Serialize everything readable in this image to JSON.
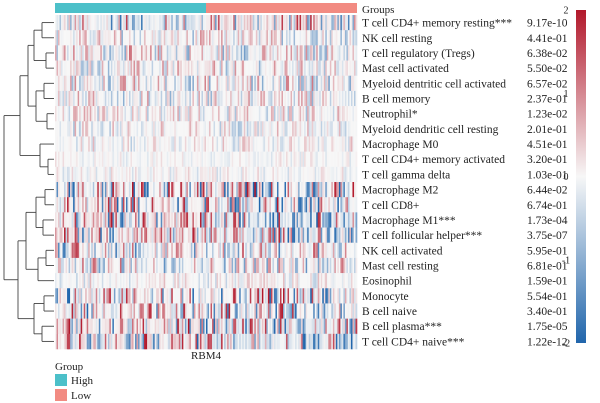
{
  "chart_data": {
    "type": "heatmap",
    "annotation_title": "Groups",
    "column_label": "RBM4",
    "groups": [
      {
        "name": "High",
        "color": "#4cc0c9",
        "fraction": 0.5
      },
      {
        "name": "Low",
        "color": "#f28b82",
        "fraction": 0.5
      }
    ],
    "group_legend_title": "Group",
    "rows": [
      {
        "label": "T cell CD4+ memory resting***",
        "pvalue": "9.17e-10"
      },
      {
        "label": "NK cell resting",
        "pvalue": "4.41e-01"
      },
      {
        "label": "T cell regulatory (Tregs)",
        "pvalue": "6.38e-02"
      },
      {
        "label": "Mast cell activated",
        "pvalue": "5.50e-02"
      },
      {
        "label": "Myeloid dentritic cell activated",
        "pvalue": "6.57e-02"
      },
      {
        "label": "B cell memory",
        "pvalue": "2.37e-01"
      },
      {
        "label": "Neutrophil*",
        "pvalue": "1.23e-02"
      },
      {
        "label": "Myeloid dendritic cell resting",
        "pvalue": "2.01e-01"
      },
      {
        "label": "Macrophage M0",
        "pvalue": "4.51e-01"
      },
      {
        "label": "T cell CD4+ memory activated",
        "pvalue": "3.20e-01"
      },
      {
        "label": "T cell gamma delta",
        "pvalue": "1.03e-01"
      },
      {
        "label": "Macrophage M2",
        "pvalue": "6.44e-02"
      },
      {
        "label": "T cell CD8+",
        "pvalue": "6.74e-01"
      },
      {
        "label": "Macrophage M1***",
        "pvalue": "1.73e-04"
      },
      {
        "label": "T cell follicular helper***",
        "pvalue": "3.75e-07"
      },
      {
        "label": "NK cell activated",
        "pvalue": "5.95e-01"
      },
      {
        "label": "Mast cell resting",
        "pvalue": "6.81e-01"
      },
      {
        "label": "Eosinophil",
        "pvalue": "1.59e-01"
      },
      {
        "label": "Monocyte",
        "pvalue": "5.54e-01"
      },
      {
        "label": "B cell naive",
        "pvalue": "3.40e-01"
      },
      {
        "label": "B cell plasma***",
        "pvalue": "1.75e-05"
      },
      {
        "label": "T cell CD4+ naive***",
        "pvalue": "1.22e-12"
      }
    ],
    "colorscale": {
      "min": -2,
      "max": 2,
      "ticks": [
        "2",
        "1",
        "0",
        "-1",
        "-2"
      ],
      "low_color": "#2166ac",
      "mid_color": "#f7f7f7",
      "high_color": "#b2182b"
    }
  }
}
